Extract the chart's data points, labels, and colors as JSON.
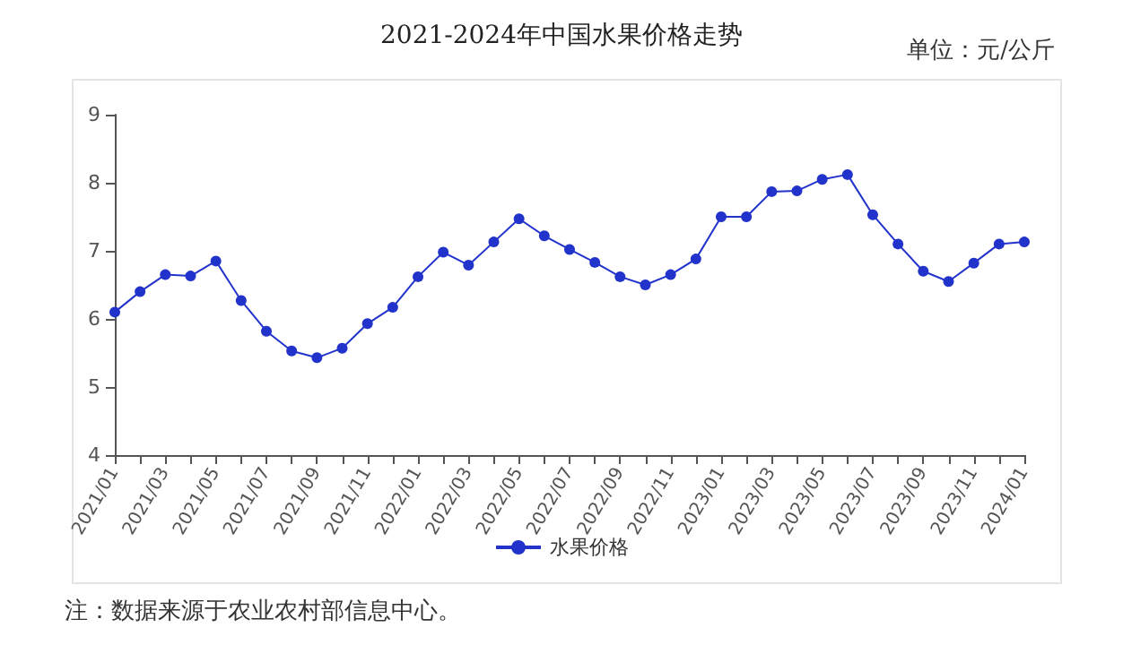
{
  "chart_data": {
    "type": "line",
    "title": "2021-2024年中国水果价格走势",
    "annotations": [
      "单位：元/公斤",
      "注：数据来源于农业农村部信息中心。"
    ],
    "categories": [
      "2021/01",
      null,
      "2021/03",
      null,
      "2021/05",
      null,
      "2021/07",
      null,
      "2021/09",
      null,
      "2021/11",
      null,
      "2022/01",
      null,
      "2022/03",
      null,
      "2022/05",
      null,
      "2022/07",
      null,
      "2022/09",
      null,
      "2022/11",
      null,
      "2023/01",
      null,
      "2023/03",
      null,
      "2023/05",
      null,
      "2023/07",
      null,
      "2023/09",
      null,
      "2023/11",
      null,
      "2024/01"
    ],
    "series": [
      {
        "name": "水果价格",
        "color": "#2233cc",
        "values": [
          6.1,
          6.4,
          6.65,
          6.63,
          6.85,
          6.27,
          5.82,
          5.53,
          5.43,
          5.57,
          5.93,
          6.17,
          6.62,
          6.98,
          6.79,
          7.13,
          7.47,
          7.22,
          7.02,
          6.83,
          6.62,
          6.5,
          6.65,
          6.88,
          7.5,
          7.5,
          7.87,
          7.88,
          8.05,
          8.12,
          7.53,
          7.1,
          6.7,
          6.55,
          6.82,
          7.1,
          7.13
        ]
      }
    ],
    "ylim": [
      4,
      9
    ],
    "yticks": [
      4,
      5,
      6,
      7,
      8,
      9
    ],
    "grid": false,
    "legend": "bottom",
    "marker": "circle",
    "line_style": "solid"
  }
}
